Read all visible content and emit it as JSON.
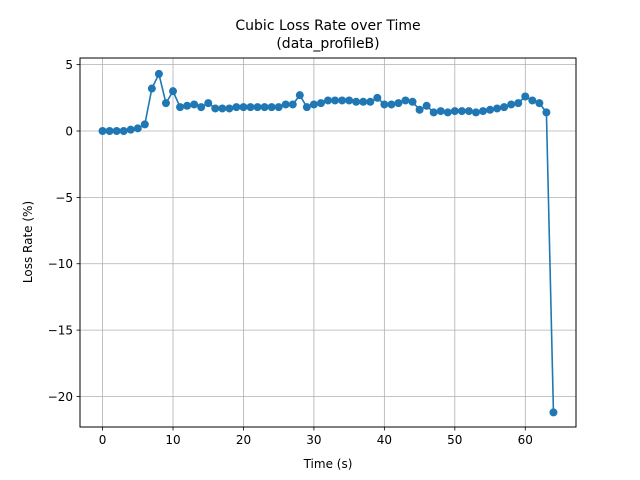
{
  "chart_data": {
    "type": "line",
    "title": "Cubic Loss Rate over Time",
    "subtitle": "(data_profileB)",
    "xlabel": "Time (s)",
    "ylabel": "Loss Rate (%)",
    "xlim": [
      -3.2,
      67.2
    ],
    "ylim": [
      -22.3,
      5.5
    ],
    "xticks": [
      0,
      10,
      20,
      30,
      40,
      50,
      60
    ],
    "xtick_labels": [
      "0",
      "10",
      "20",
      "30",
      "40",
      "50",
      "60"
    ],
    "yticks": [
      5,
      0,
      -5,
      -10,
      -15,
      -20
    ],
    "ytick_labels": [
      "5",
      "0",
      "−5",
      "−10",
      "−15",
      "−20"
    ],
    "grid": true,
    "series": [
      {
        "color": "#1f77b4",
        "x": [
          0,
          1,
          2,
          3,
          4,
          5,
          6,
          7,
          8,
          9,
          10,
          11,
          12,
          13,
          14,
          15,
          16,
          17,
          18,
          19,
          20,
          21,
          22,
          23,
          24,
          25,
          26,
          27,
          28,
          29,
          30,
          31,
          32,
          33,
          34,
          35,
          36,
          37,
          38,
          39,
          40,
          41,
          42,
          43,
          44,
          45,
          46,
          47,
          48,
          49,
          50,
          51,
          52,
          53,
          54,
          55,
          56,
          57,
          58,
          59,
          60,
          61,
          62,
          63,
          64
        ],
        "y": [
          0.0,
          0.0,
          0.0,
          0.0,
          0.1,
          0.2,
          0.5,
          3.2,
          4.3,
          2.1,
          3.0,
          1.8,
          1.9,
          2.0,
          1.8,
          2.1,
          1.7,
          1.7,
          1.7,
          1.8,
          1.8,
          1.8,
          1.8,
          1.8,
          1.8,
          1.8,
          2.0,
          2.0,
          2.7,
          1.8,
          2.0,
          2.1,
          2.3,
          2.3,
          2.3,
          2.3,
          2.2,
          2.2,
          2.2,
          2.5,
          2.0,
          2.0,
          2.1,
          2.3,
          2.2,
          1.6,
          1.9,
          1.4,
          1.5,
          1.4,
          1.5,
          1.5,
          1.5,
          1.4,
          1.5,
          1.6,
          1.7,
          1.8,
          2.0,
          2.1,
          2.6,
          2.3,
          2.1,
          1.4,
          -21.2
        ]
      }
    ]
  }
}
